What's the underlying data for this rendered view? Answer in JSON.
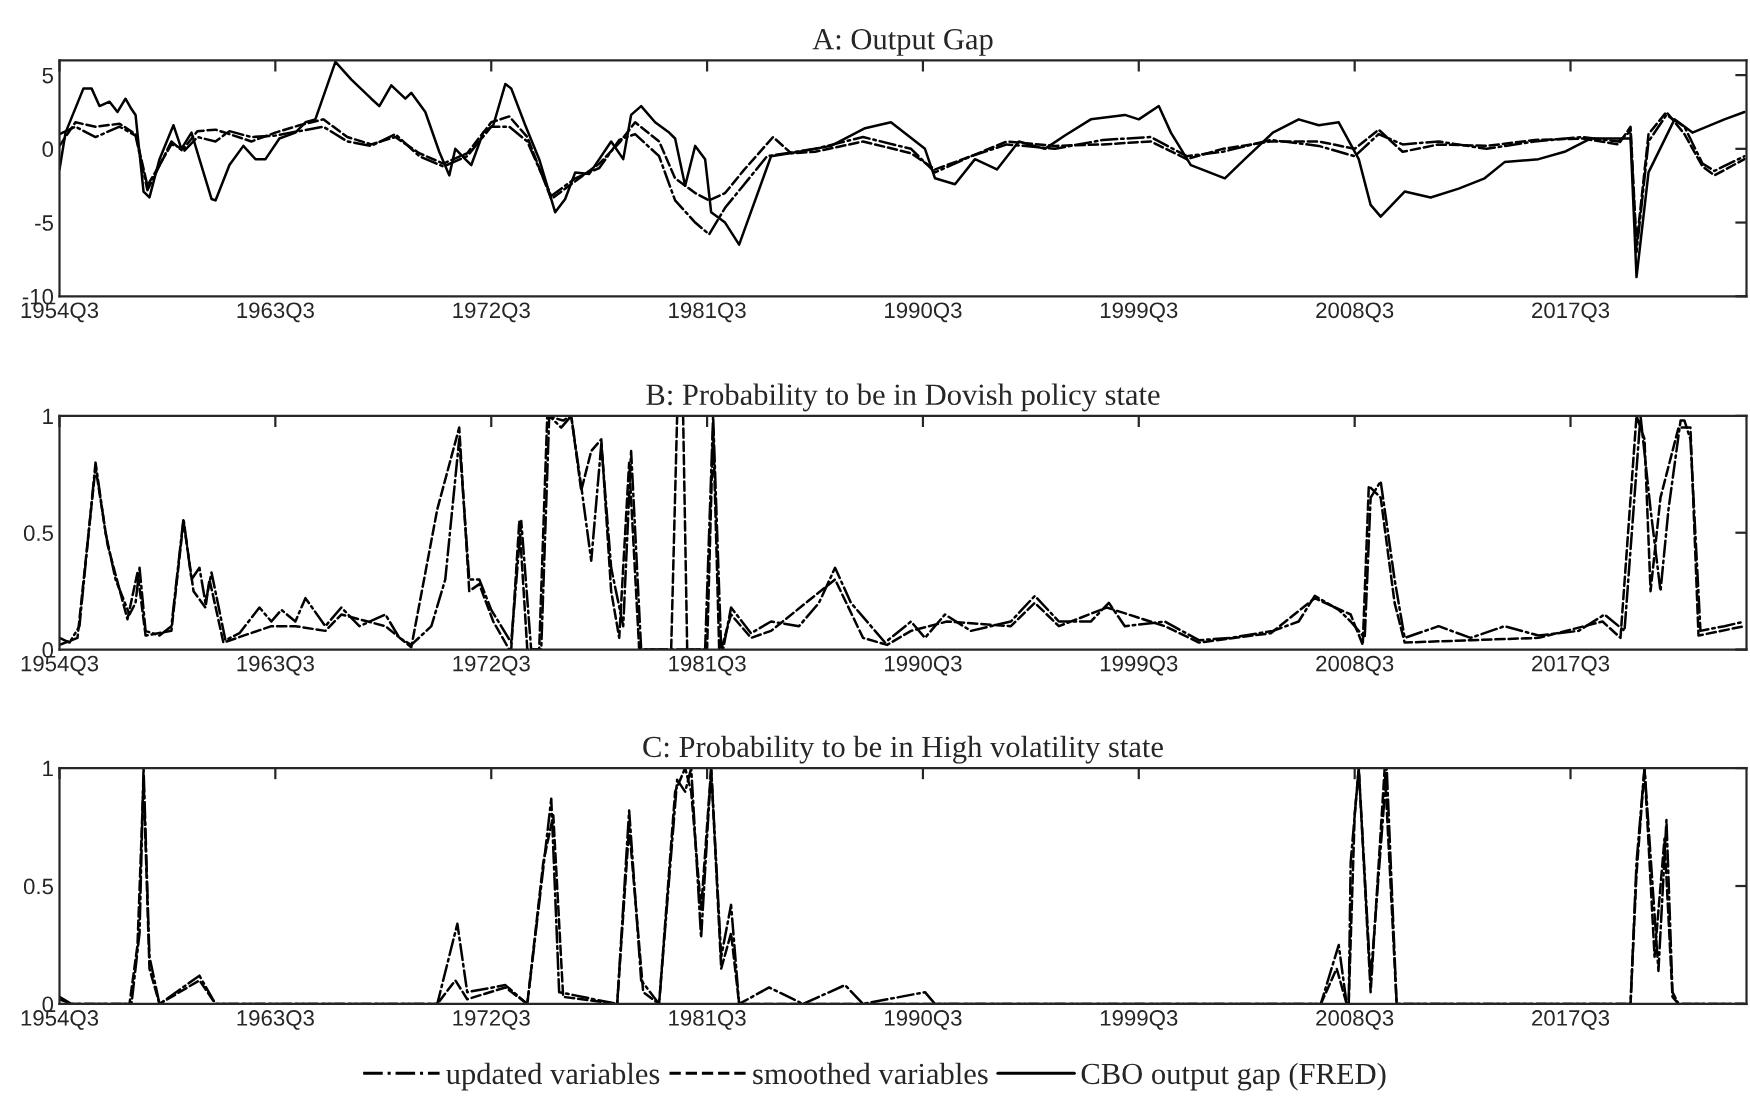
{
  "chart_data": [
    {
      "type": "line",
      "title": "A: Output Gap",
      "xlim": [
        "1954-07",
        "2024-11"
      ],
      "ylim": [
        -10,
        6
      ],
      "yticks": [
        -10,
        -5,
        0,
        5
      ],
      "xticks": [
        {
          "value": "1954-07",
          "label": "1954Q3"
        },
        {
          "value": "1963-07",
          "label": "1963Q3"
        },
        {
          "value": "1972-07",
          "label": "1972Q3"
        },
        {
          "value": "1981-07",
          "label": "1981Q3"
        },
        {
          "value": "1990-07",
          "label": "1990Q3"
        },
        {
          "value": "1999-07",
          "label": "1999Q3"
        },
        {
          "value": "2008-07",
          "label": "2008Q3"
        },
        {
          "value": "2017-07",
          "label": "2017Q3"
        }
      ],
      "legend": "bottom",
      "series": [
        {
          "name": "updated variables",
          "color": "#000000",
          "line_style": "dashdot",
          "x": [
            "1954-07",
            "1955-03",
            "1956-01",
            "1957-01",
            "1957-09",
            "1958-03",
            "1959-03",
            "1959-09",
            "1960-04",
            "1961-01",
            "1961-08",
            "1962-07",
            "1963-07",
            "1964-07",
            "1965-07",
            "1966-07",
            "1967-07",
            "1968-07",
            "1969-07",
            "1970-07",
            "1971-07",
            "1972-07",
            "1973-04",
            "1974-01",
            "1975-01",
            "1976-01",
            "1977-01",
            "1977-11",
            "1978-07",
            "1979-07",
            "1980-03",
            "1981-01",
            "1981-08",
            "1982-04",
            "1983-01",
            "1984-01",
            "1986-01",
            "1988-01",
            "1990-01",
            "1991-01",
            "1992-07",
            "1994-01",
            "1996-01",
            "1998-01",
            "2000-01",
            "2001-07",
            "2003-01",
            "2005-01",
            "2007-01",
            "2008-07",
            "2009-07",
            "2010-07",
            "2012-01",
            "2014-01",
            "2016-01",
            "2018-01",
            "2019-07",
            "2020-01",
            "2020-04",
            "2020-10",
            "2021-07",
            "2022-04",
            "2023-01",
            "2023-07",
            "2024-10"
          ],
          "values": [
            1.0,
            1.5,
            0.8,
            1.5,
            0.9,
            -2.8,
            0.5,
            -0.2,
            0.8,
            0.5,
            1.2,
            0.8,
            0.9,
            1.2,
            1.5,
            0.5,
            0.2,
            1.0,
            -0.5,
            -1.2,
            -0.5,
            1.5,
            1.5,
            0.5,
            -3.2,
            -2.0,
            -1.3,
            0.6,
            1.0,
            -0.5,
            -3.5,
            -5.0,
            -5.8,
            -4.0,
            -2.5,
            -0.5,
            0,
            0.8,
            0.0,
            -1.6,
            -0.5,
            0.3,
            0.0,
            0.6,
            0.8,
            -0.5,
            -0.2,
            0.6,
            0.2,
            -0.5,
            1.0,
            0.3,
            0.5,
            0.0,
            0.5,
            0.8,
            0.5,
            1.2,
            -7.0,
            0.5,
            2.3,
            1.5,
            -1.0,
            -1.5,
            -0.5
          ]
        },
        {
          "name": "smoothed variables",
          "color": "#000000",
          "line_style": "dashed",
          "x": [
            "1954-07",
            "1955-03",
            "1956-01",
            "1957-01",
            "1957-09",
            "1958-03",
            "1959-03",
            "1959-09",
            "1960-04",
            "1961-01",
            "1961-08",
            "1962-07",
            "1963-07",
            "1964-07",
            "1965-07",
            "1966-07",
            "1967-07",
            "1968-07",
            "1969-07",
            "1970-07",
            "1971-07",
            "1972-07",
            "1973-04",
            "1974-01",
            "1975-01",
            "1976-01",
            "1977-01",
            "1977-11",
            "1978-07",
            "1979-07",
            "1980-03",
            "1981-01",
            "1981-08",
            "1982-04",
            "1983-01",
            "1984-04",
            "1985-01",
            "1986-01",
            "1988-01",
            "1990-01",
            "1991-01",
            "1992-07",
            "1994-01",
            "1996-01",
            "1998-01",
            "2000-01",
            "2001-07",
            "2003-01",
            "2005-01",
            "2007-01",
            "2008-07",
            "2009-07",
            "2010-07",
            "2012-01",
            "2014-01",
            "2016-01",
            "2018-01",
            "2019-07",
            "2020-01",
            "2020-04",
            "2020-10",
            "2021-07",
            "2022-04",
            "2023-01",
            "2023-07",
            "2024-10"
          ],
          "values": [
            0.2,
            1.8,
            1.5,
            1.7,
            1.0,
            -2.5,
            0.3,
            0,
            1.2,
            1.3,
            1.0,
            0.5,
            1.1,
            1.6,
            2.0,
            0.8,
            0.3,
            0.8,
            -0.3,
            -1.0,
            -0.3,
            1.8,
            2.2,
            0.8,
            -3.4,
            -2.2,
            -1.0,
            0.4,
            1.8,
            0.5,
            -2.0,
            -3.0,
            -3.5,
            -3.0,
            -1.5,
            0.8,
            -0.3,
            -0.2,
            0.5,
            -0.3,
            -1.4,
            -0.5,
            0.5,
            0.2,
            0.3,
            0.5,
            -0.7,
            0.0,
            0.5,
            0.5,
            0.0,
            1.3,
            -0.2,
            0.3,
            0.2,
            0.6,
            0.7,
            0.3,
            1.5,
            -6.5,
            1.0,
            2.5,
            1.0,
            -1.2,
            -1.8,
            -0.7
          ]
        },
        {
          "name": "CBO output gap (FRED)",
          "color": "#000000",
          "line_style": "solid",
          "x": [
            "1954-07",
            "1954-10",
            "1955-07",
            "1955-11",
            "1956-03",
            "1956-08",
            "1956-12",
            "1957-04",
            "1957-07",
            "1957-09",
            "1958-01",
            "1958-04",
            "1958-09",
            "1959-04",
            "1959-08",
            "1960-01",
            "1960-05",
            "1960-11",
            "1961-01",
            "1961-08",
            "1962-03",
            "1962-09",
            "1963-02",
            "1963-09",
            "1964-05",
            "1964-10",
            "1965-03",
            "1966-01",
            "1966-09",
            "1967-07",
            "1967-11",
            "1968-05",
            "1968-12",
            "1969-03",
            "1969-10",
            "1970-05",
            "1970-10",
            "1971-01",
            "1971-06",
            "1971-09",
            "1972-03",
            "1972-08",
            "1973-02",
            "1973-05",
            "1973-12",
            "1974-07",
            "1975-03",
            "1975-08",
            "1976-01",
            "1976-08",
            "1977-01",
            "1977-07",
            "1978-01",
            "1978-05",
            "1978-10",
            "1979-05",
            "1979-12",
            "1980-03",
            "1980-08",
            "1981-01",
            "1981-06",
            "1981-09",
            "1982-04",
            "1982-11",
            "1984-03",
            "1985-05",
            "1986-09",
            "1988-02",
            "1989-03",
            "1990-08",
            "1991-01",
            "1991-11",
            "1992-09",
            "1993-08",
            "1994-07",
            "1995-08",
            "1996-06",
            "1997-07",
            "1998-12",
            "1999-07",
            "2000-05",
            "2000-11",
            "2001-09",
            "2003-02",
            "2003-12",
            "2005-02",
            "2006-03",
            "2007-01",
            "2007-11",
            "2008-09",
            "2009-03",
            "2009-08",
            "2010-08",
            "2011-09",
            "2012-11",
            "2013-12",
            "2014-10",
            "2016-03",
            "2017-04",
            "2018-05",
            "2019-07",
            "2020-01",
            "2020-04",
            "2020-10",
            "2021-11",
            "2022-08",
            "2023-12",
            "2024-10"
          ],
          "values": [
            -1.4,
            1.1,
            4.1,
            4.1,
            2.9,
            3.2,
            2.5,
            3.4,
            2.7,
            2.3,
            -2.9,
            -3.3,
            -0.7,
            1.6,
            0,
            1.1,
            -0.7,
            -3.4,
            -3.5,
            -1.1,
            0.2,
            -0.7,
            -0.7,
            0.7,
            1.1,
            1.8,
            2.0,
            5.9,
            4.7,
            3.4,
            2.9,
            4.3,
            3.4,
            3.8,
            2.5,
            -0.2,
            -1.8,
            0,
            -0.7,
            -1.1,
            1.1,
            1.6,
            4.4,
            4.1,
            1.6,
            -0.7,
            -4.3,
            -3.4,
            -1.6,
            -1.7,
            -0.7,
            0.5,
            -0.7,
            2.3,
            2.9,
            1.8,
            1.1,
            0.7,
            -2.5,
            0.2,
            -0.7,
            -4.3,
            -5.0,
            -6.5,
            -0.5,
            -0.2,
            0.2,
            1.4,
            1.8,
            0,
            -2.0,
            -2.4,
            -0.7,
            -1.4,
            0.5,
            0,
            0.9,
            2.0,
            2.3,
            2.0,
            2.9,
            1.1,
            -1.1,
            -2.0,
            -0.7,
            1.1,
            2.0,
            1.6,
            1.8,
            -0.7,
            -3.8,
            -4.6,
            -2.9,
            -3.3,
            -2.7,
            -2.0,
            -0.9,
            -0.7,
            -0.2,
            0.7,
            0.7,
            0.7,
            -8.7,
            -1.6,
            2.0,
            1.1,
            2.0,
            2.5
          ]
        }
      ]
    },
    {
      "type": "line",
      "title": "B: Probability to be in Dovish policy state",
      "xlim": [
        "1954-07",
        "2024-11"
      ],
      "ylim": [
        0,
        1
      ],
      "yticks": [
        0,
        0.5,
        1
      ],
      "xticks": [
        {
          "value": "1954-07",
          "label": "1954Q3"
        },
        {
          "value": "1963-07",
          "label": "1963Q3"
        },
        {
          "value": "1972-07",
          "label": "1972Q3"
        },
        {
          "value": "1981-07",
          "label": "1981Q3"
        },
        {
          "value": "1990-07",
          "label": "1990Q3"
        },
        {
          "value": "1999-07",
          "label": "1999Q3"
        },
        {
          "value": "2008-07",
          "label": "2008Q3"
        },
        {
          "value": "2017-07",
          "label": "2017Q3"
        }
      ],
      "series": [
        {
          "color": "#000000",
          "line_style": "dashdot",
          "x": [
            "1954-07",
            "1954-12",
            "1955-05",
            "1956-01",
            "1956-06",
            "1956-11",
            "1957-06",
            "1957-09",
            "1957-11",
            "1958-02",
            "1958-09",
            "1959-03",
            "1959-09",
            "1960-01",
            "1960-05",
            "1960-08",
            "1960-11",
            "1961-06",
            "1962-01",
            "1962-11",
            "1963-05",
            "1963-10",
            "1964-05",
            "1964-10",
            "1965-08",
            "1966-04",
            "1967-01",
            "1968-02",
            "1968-09",
            "1969-03",
            "1970-01",
            "1970-08",
            "1971-03",
            "1971-08",
            "1972-01",
            "1972-07",
            "1973-05",
            "1973-10",
            "1974-03",
            "1974-08",
            "1974-12",
            "1975-06",
            "1975-11",
            "1976-04",
            "1976-09",
            "1977-02",
            "1977-07",
            "1978-01",
            "1978-05",
            "1978-10",
            "1980-01",
            "1980-11",
            "1981-06",
            "1981-10",
            "1982-02",
            "1982-03",
            "1982-07",
            "1983-05",
            "1984-03",
            "1985-05",
            "1986-03",
            "1986-11",
            "1987-07",
            "1988-12",
            "1990-01",
            "1990-08",
            "1991-06",
            "1992-07",
            "1994-03",
            "1995-03",
            "1996-03",
            "1997-07",
            "1998-04",
            "1998-12",
            "2000-08",
            "2002-01",
            "2003-05",
            "2005-02",
            "2006-03",
            "2006-11",
            "2007-11",
            "2008-05",
            "2008-12",
            "2009-03",
            "2009-08",
            "2010-03",
            "2010-08",
            "2012-01",
            "2013-05",
            "2014-10",
            "2016-03",
            "2017-11",
            "2018-12",
            "2019-10",
            "2020-06",
            "2020-11",
            "2021-04",
            "2021-08",
            "2022-02",
            "2022-04",
            "2022-07",
            "2022-12",
            "2023-12",
            "2024-10"
          ],
          "values": [
            0.05,
            0.03,
            0.1,
            0.8,
            0.5,
            0.3,
            0.15,
            0.2,
            0.35,
            0.08,
            0.06,
            0.1,
            0.56,
            0.3,
            0.35,
            0.2,
            0.33,
            0.04,
            0.07,
            0.18,
            0.12,
            0.17,
            0.12,
            0.22,
            0.1,
            0.18,
            0.1,
            0.15,
            0.05,
            0.02,
            0.1,
            0.3,
            0.9,
            0.3,
            0.3,
            0.17,
            0.03,
            0.55,
            0.0,
            0.0,
            1.0,
            0.95,
            1.0,
            0.7,
            0.38,
            0.88,
            0.35,
            0.1,
            0.85,
            0.0,
            0.0,
            0.0,
            0.0,
            1.0,
            0.0,
            0.0,
            0.18,
            0.07,
            0.12,
            0.1,
            0.2,
            0.35,
            0.2,
            0.03,
            0.12,
            0.05,
            0.15,
            0.08,
            0.12,
            0.23,
            0.12,
            0.12,
            0.2,
            0.1,
            0.12,
            0.04,
            0.05,
            0.08,
            0.12,
            0.23,
            0.17,
            0.12,
            0.05,
            0.65,
            0.72,
            0.3,
            0.05,
            0.1,
            0.05,
            0.1,
            0.06,
            0.08,
            0.15,
            0.08,
            1.0,
            0.6,
            0.25,
            0.6,
            0.98,
            0.98,
            0.9,
            0.08,
            0.1,
            0.12
          ]
        },
        {
          "color": "#000000",
          "line_style": "dashed",
          "x": [
            "1954-07",
            "1955-04",
            "1956-01",
            "1956-07",
            "1957-05",
            "1957-10",
            "1958-02",
            "1959-03",
            "1959-09",
            "1960-02",
            "1960-08",
            "1960-10",
            "1961-05",
            "1963-05",
            "1964-05",
            "1965-08",
            "1966-04",
            "1968-02",
            "1969-03",
            "1970-04",
            "1971-03",
            "1971-08",
            "1972-01",
            "1972-08",
            "1973-04",
            "1973-05",
            "1973-09",
            "1974-01",
            "1974-07",
            "1974-11",
            "1975-07",
            "1975-11",
            "1976-04",
            "1976-09",
            "1977-02",
            "1977-07",
            "1977-11",
            "1978-04",
            "1978-09",
            "1980-01",
            "1980-04",
            "1980-07",
            "1980-09",
            "1981-07",
            "1981-10",
            "1982-01",
            "1982-02",
            "1982-07",
            "1983-05",
            "1984-03",
            "1986-11",
            "1988-01",
            "1989-01",
            "1990-01",
            "1991-07",
            "1994-03",
            "1995-03",
            "1996-03",
            "1998-03",
            "2000-08",
            "2002-01",
            "2005-01",
            "2006-11",
            "2008-05",
            "2008-11",
            "2009-02",
            "2009-08",
            "2010-03",
            "2010-08",
            "2013-05",
            "2016-03",
            "2018-11",
            "2019-08",
            "2020-04",
            "2020-08",
            "2020-11",
            "2021-04",
            "2022-01",
            "2022-07",
            "2022-11",
            "2024-10"
          ],
          "values": [
            0.02,
            0.05,
            0.78,
            0.45,
            0.13,
            0.33,
            0.06,
            0.08,
            0.55,
            0.25,
            0.18,
            0.3,
            0.03,
            0.1,
            0.1,
            0.08,
            0.15,
            0.1,
            0.01,
            0.6,
            0.95,
            0.25,
            0.28,
            0.12,
            0.0,
            0.0,
            0.55,
            0.0,
            0.0,
            1.0,
            0.98,
            1.0,
            0.68,
            0.85,
            0.9,
            0.25,
            0.05,
            0.8,
            0.0,
            0.0,
            1.0,
            1.0,
            0.0,
            0.0,
            0.95,
            0.0,
            0.0,
            0.15,
            0.05,
            0.08,
            0.3,
            0.05,
            0.02,
            0.08,
            0.12,
            0.1,
            0.2,
            0.1,
            0.18,
            0.1,
            0.03,
            0.07,
            0.22,
            0.15,
            0.02,
            0.7,
            0.65,
            0.2,
            0.03,
            0.04,
            0.05,
            0.12,
            0.05,
            1.0,
            0.9,
            0.25,
            0.65,
            0.95,
            0.95,
            0.06,
            0.1
          ]
        }
      ]
    },
    {
      "type": "line",
      "title": "C: Probability to be in High volatility state",
      "xlim": [
        "1954-07",
        "2024-11"
      ],
      "ylim": [
        0,
        1
      ],
      "yticks": [
        0,
        0.5,
        1
      ],
      "xticks": [
        {
          "value": "1954-07",
          "label": "1954Q3"
        },
        {
          "value": "1963-07",
          "label": "1963Q3"
        },
        {
          "value": "1972-07",
          "label": "1972Q3"
        },
        {
          "value": "1981-07",
          "label": "1981Q3"
        },
        {
          "value": "1990-07",
          "label": "1990Q3"
        },
        {
          "value": "1999-07",
          "label": "1999Q3"
        },
        {
          "value": "2008-07",
          "label": "2008Q3"
        },
        {
          "value": "2017-07",
          "label": "2017Q3"
        }
      ],
      "series": [
        {
          "color": "#000000",
          "line_style": "dashdot",
          "x": [
            "1954-07",
            "1955-01",
            "1957-07",
            "1957-11",
            "1958-01",
            "1958-04",
            "1958-09",
            "1960-05",
            "1961-01",
            "1970-04",
            "1971-02",
            "1971-07",
            "1973-02",
            "1974-01",
            "1974-08",
            "1975-01",
            "1975-05",
            "1977-10",
            "1978-04",
            "1978-10",
            "1979-07",
            "1980-04",
            "1980-08",
            "1980-11",
            "1981-04",
            "1981-09",
            "1982-02",
            "1982-07",
            "1982-11",
            "1984-02",
            "1985-07",
            "1987-04",
            "1988-01",
            "1990-08",
            "1991-01",
            "2007-02",
            "2007-11",
            "2008-03",
            "2008-04",
            "2008-05",
            "2008-09",
            "2009-03",
            "2009-11",
            "2010-04",
            "2020-01",
            "2020-04",
            "2020-08",
            "2021-03",
            "2021-07",
            "2021-10",
            "2022-01",
            "2024-10"
          ],
          "values": [
            0.03,
            0.0,
            0.0,
            0.3,
            1.0,
            0.2,
            0.0,
            0.12,
            0.0,
            0.0,
            0.34,
            0.05,
            0.08,
            0.0,
            0.5,
            0.87,
            0.05,
            0.0,
            0.82,
            0.1,
            0.0,
            0.95,
            0.9,
            1.0,
            0.28,
            1.0,
            0.2,
            0.42,
            0.0,
            0.07,
            0.0,
            0.08,
            0.0,
            0.05,
            0.0,
            0.0,
            0.25,
            0.0,
            0.0,
            0.6,
            1.0,
            0.1,
            1.0,
            0.0,
            0.0,
            0.6,
            1.0,
            0.14,
            0.78,
            0.05,
            0.0,
            0.0
          ]
        },
        {
          "color": "#000000",
          "line_style": "dashed",
          "x": [
            "1954-07",
            "1955-01",
            "1957-06",
            "1957-10",
            "1958-01",
            "1958-04",
            "1958-09",
            "1960-05",
            "1961-01",
            "1970-04",
            "1971-01",
            "1971-07",
            "1973-02",
            "1974-01",
            "1974-09",
            "1975-02",
            "1975-07",
            "1977-10",
            "1978-04",
            "1978-11",
            "1979-07",
            "1980-03",
            "1980-08",
            "1980-11",
            "1981-04",
            "1981-09",
            "1982-02",
            "1982-07",
            "1982-11",
            "1985-07",
            "1988-01",
            "2007-02",
            "2007-10",
            "2008-03",
            "2008-04",
            "2008-07",
            "2008-09",
            "2009-03",
            "2009-10",
            "2010-04",
            "2020-01",
            "2020-04",
            "2020-08",
            "2021-01",
            "2021-06",
            "2021-10",
            "2022-01",
            "2024-10"
          ],
          "values": [
            0.02,
            0.0,
            0.0,
            0.25,
            0.95,
            0.15,
            0.0,
            0.1,
            0.0,
            0.0,
            0.1,
            0.02,
            0.07,
            0.0,
            0.6,
            0.8,
            0.03,
            0.0,
            0.75,
            0.05,
            0.0,
            0.9,
            1.0,
            0.9,
            0.4,
            1.0,
            0.15,
            0.3,
            0.0,
            0.0,
            0.0,
            0.0,
            0.15,
            0.0,
            0.0,
            0.8,
            1.0,
            0.05,
            1.0,
            0.0,
            0.0,
            0.55,
            1.0,
            0.2,
            0.7,
            0.03,
            0.0,
            0.0
          ]
        }
      ]
    }
  ]
}
